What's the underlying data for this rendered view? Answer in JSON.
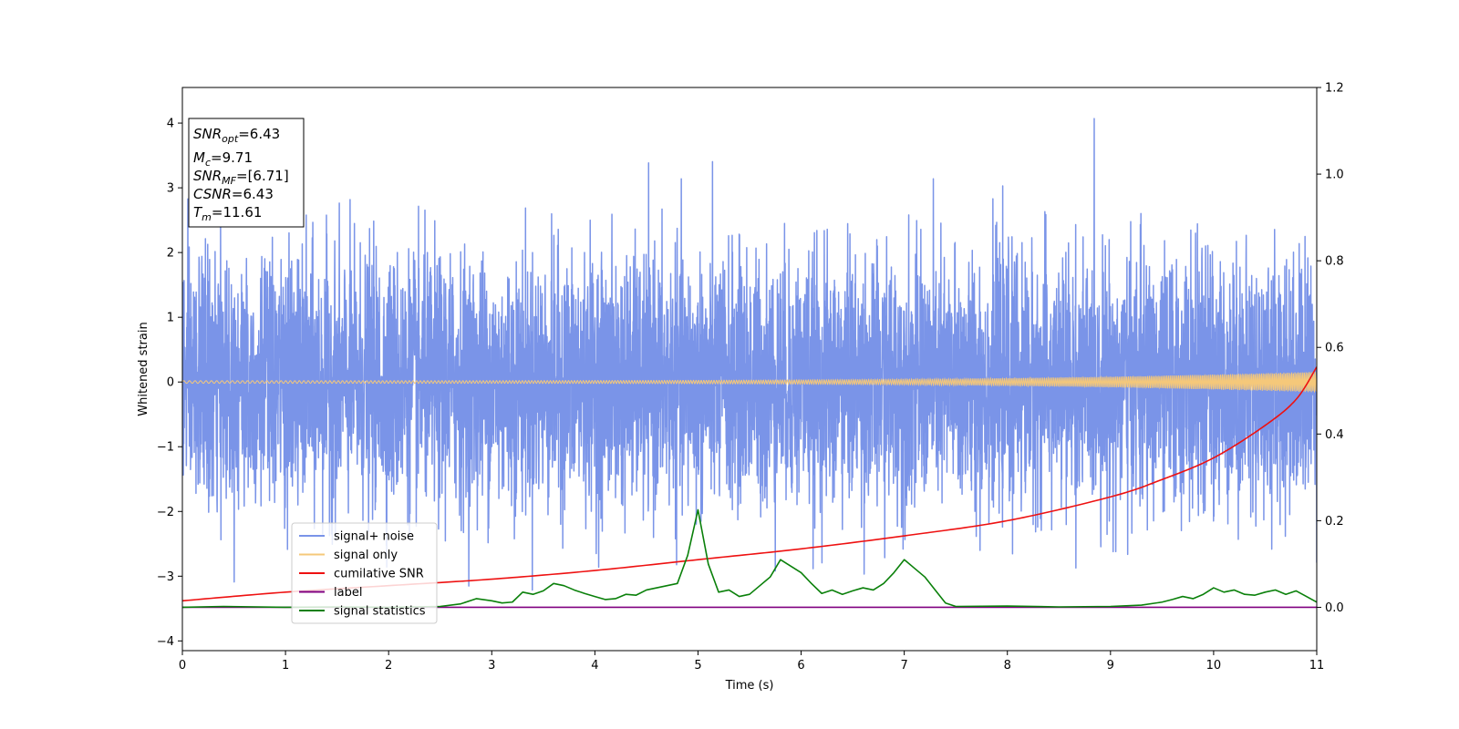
{
  "chart_data": {
    "type": "line",
    "xlabel": "Time (s)",
    "ylabel": "Whitened strain",
    "xlim": [
      0,
      11
    ],
    "ylim": [
      -4.15,
      4.55
    ],
    "y2lim": [
      -0.1,
      1.2
    ],
    "x_ticks": [
      0,
      1,
      2,
      3,
      4,
      5,
      6,
      7,
      8,
      9,
      10,
      11
    ],
    "y_ticks": [
      -4,
      -3,
      -2,
      -1,
      0,
      1,
      2,
      3,
      4
    ],
    "y_tick_labels": [
      "−4",
      "−3",
      "−2",
      "−1",
      "0",
      "1",
      "2",
      "3",
      "4"
    ],
    "y2_ticks": [
      0.0,
      0.2,
      0.4,
      0.6,
      0.8,
      1.0,
      1.2
    ],
    "y2_tick_labels": [
      "0.0",
      "0.2",
      "0.4",
      "0.6",
      "0.8",
      "1.0",
      "1.2"
    ],
    "grid": false,
    "legend_position": "lower-left",
    "annotation": {
      "snr_opt": {
        "base": "SNR",
        "sub": "opt",
        "value": "=6.43"
      },
      "mc": {
        "base": "M",
        "sub": "c",
        "value": "=9.71"
      },
      "snr_mf": {
        "base": "SNR",
        "sub": "MF",
        "value": "=[6.71]"
      },
      "csnr": {
        "base": "CSNR",
        "value": "=6.43"
      },
      "tm": {
        "base": "T",
        "sub": "m",
        "value": "=11.61"
      }
    },
    "series": [
      {
        "name": "signal+ noise",
        "color": "#7a94e8",
        "axis": "left",
        "kind": "noise",
        "noise_sigma": 0.95,
        "noise_peak_max": 4.15,
        "noise_peak_min": -3.7
      },
      {
        "name": "signal only",
        "color": "#f5c87a",
        "axis": "left",
        "kind": "chirp",
        "amplitude_start": 0.02,
        "amplitude_end": 0.16
      },
      {
        "name": "cumilative SNR",
        "color": "#ee1111",
        "axis": "right",
        "x": [
          0,
          1,
          2,
          3,
          4,
          5,
          6,
          7,
          8,
          9,
          9.5,
          10,
          10.5,
          10.8,
          11
        ],
        "y": [
          0.015,
          0.035,
          0.05,
          0.065,
          0.085,
          0.11,
          0.135,
          0.165,
          0.2,
          0.255,
          0.295,
          0.345,
          0.42,
          0.48,
          0.555
        ]
      },
      {
        "name": "label",
        "color": "#800080",
        "axis": "right",
        "x": [
          0,
          11
        ],
        "y": [
          0.0,
          0.0
        ]
      },
      {
        "name": "signal statistics",
        "color": "#0a800a",
        "axis": "right",
        "x": [
          0,
          0.4,
          1,
          1.5,
          2,
          2.5,
          2.7,
          2.85,
          3.0,
          3.1,
          3.2,
          3.3,
          3.4,
          3.5,
          3.6,
          3.7,
          3.8,
          3.9,
          4.0,
          4.1,
          4.2,
          4.3,
          4.4,
          4.5,
          4.6,
          4.7,
          4.8,
          4.9,
          5.0,
          5.1,
          5.2,
          5.3,
          5.4,
          5.5,
          5.6,
          5.7,
          5.8,
          5.9,
          6.0,
          6.1,
          6.2,
          6.3,
          6.4,
          6.5,
          6.6,
          6.7,
          6.8,
          6.9,
          7.0,
          7.1,
          7.2,
          7.3,
          7.4,
          7.5,
          8.0,
          8.5,
          9.0,
          9.3,
          9.5,
          9.6,
          9.7,
          9.8,
          9.9,
          10.0,
          10.1,
          10.2,
          10.3,
          10.4,
          10.5,
          10.6,
          10.7,
          10.8,
          10.9,
          11.0
        ],
        "y": [
          0.0,
          0.002,
          0.0,
          0.001,
          0.0,
          0.002,
          0.008,
          0.02,
          0.015,
          0.01,
          0.012,
          0.035,
          0.03,
          0.038,
          0.055,
          0.05,
          0.04,
          0.032,
          0.025,
          0.018,
          0.02,
          0.03,
          0.028,
          0.04,
          0.045,
          0.05,
          0.055,
          0.12,
          0.225,
          0.1,
          0.035,
          0.04,
          0.025,
          0.03,
          0.05,
          0.07,
          0.11,
          0.095,
          0.08,
          0.055,
          0.032,
          0.04,
          0.03,
          0.038,
          0.045,
          0.04,
          0.055,
          0.08,
          0.11,
          0.09,
          0.07,
          0.04,
          0.01,
          0.002,
          0.003,
          0.001,
          0.002,
          0.005,
          0.012,
          0.018,
          0.025,
          0.02,
          0.03,
          0.045,
          0.035,
          0.04,
          0.03,
          0.028,
          0.035,
          0.04,
          0.03,
          0.038,
          0.025,
          0.012
        ]
      }
    ]
  }
}
